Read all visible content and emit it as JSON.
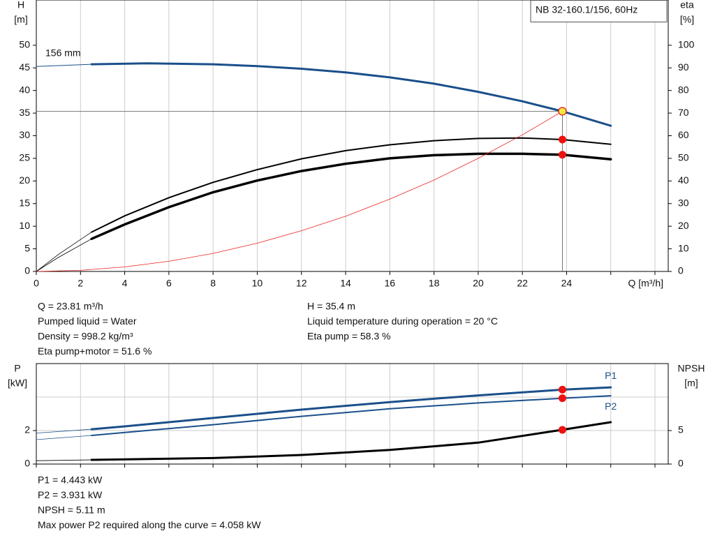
{
  "chart_data": [
    {
      "type": "line",
      "title": "NB 32-160.1/156, 60Hz",
      "ylabel": [
        "H",
        "[m]"
      ],
      "y2label": [
        "eta",
        "[%]"
      ],
      "xlabel": "Q [m³/h]",
      "curve_label": "156 mm",
      "xlim": [
        0,
        28.6
      ],
      "xticks": [
        0,
        2,
        4,
        6,
        8,
        10,
        12,
        14,
        16,
        18,
        20,
        22,
        24
      ],
      "xgrid": [
        0,
        2,
        4,
        6,
        8,
        10,
        12,
        14,
        16,
        18,
        20,
        22,
        24,
        26,
        28
      ],
      "ylim": [
        0,
        60
      ],
      "yticks": [
        0,
        5,
        10,
        15,
        20,
        25,
        30,
        35,
        40,
        45,
        50
      ],
      "y2lim": [
        0,
        120
      ],
      "y2ticks": [
        0,
        10,
        20,
        30,
        40,
        50,
        60,
        70,
        80,
        90,
        100
      ],
      "crosshair": {
        "x": 23.81,
        "y": 35.4
      },
      "series": [
        {
          "color": "#1a4f8a",
          "width": 1,
          "x": [
            0,
            1,
            2.5
          ],
          "values": [
            45.3,
            45.5,
            45.8
          ]
        },
        {
          "color": "#1a4f8a",
          "width": 3,
          "x": [
            2.5,
            5,
            8,
            10,
            12,
            14,
            16,
            18,
            20,
            22,
            23.81,
            26
          ],
          "values": [
            45.8,
            46,
            45.8,
            45.4,
            44.8,
            44,
            42.9,
            41.5,
            39.7,
            37.6,
            35.4,
            32.2
          ]
        },
        {
          "color": "#000000",
          "width": 0.8,
          "axis": "y2",
          "x": [
            0,
            1,
            2.5
          ],
          "values": [
            0,
            7.5,
            17.4
          ]
        },
        {
          "color": "#000000",
          "width": 0.8,
          "axis": "y2",
          "x": [
            0,
            1,
            2.5
          ],
          "values": [
            0,
            6.2,
            14.4
          ]
        },
        {
          "color": "#000000",
          "width": 2,
          "axis": "y2",
          "x": [
            2.5,
            4,
            6,
            8,
            10,
            12,
            14,
            16,
            18,
            20,
            22,
            23.81,
            26
          ],
          "values": [
            17.4,
            24.6,
            32.6,
            39.4,
            45,
            49.8,
            53.4,
            56,
            57.8,
            58.8,
            59,
            58.3,
            56.2
          ]
        },
        {
          "color": "#000000",
          "width": 3.5,
          "axis": "y2",
          "x": [
            2.5,
            4,
            6,
            8,
            10,
            12,
            14,
            16,
            18,
            20,
            22,
            23.81,
            26
          ],
          "values": [
            14.4,
            20.8,
            28.4,
            35,
            40.2,
            44.4,
            47.6,
            50,
            51.4,
            52,
            52,
            51.6,
            49.6
          ]
        },
        {
          "color": "#ee2222",
          "width": 0.8,
          "x": [
            0,
            2,
            4,
            6,
            8,
            10,
            12,
            14,
            16,
            18,
            20,
            22,
            23.81
          ],
          "values": [
            0,
            0.25,
            1,
            2.25,
            4,
            6.24,
            9,
            12.2,
            16,
            20.2,
            25,
            30.2,
            35.4
          ]
        }
      ],
      "points": [
        {
          "x": 23.81,
          "y": 35.4,
          "color": "#f5e642"
        },
        {
          "x": 23.81,
          "y": 58.3,
          "color": "#ee1111",
          "axis": "y2"
        },
        {
          "x": 23.81,
          "y": 51.6,
          "color": "#ee1111",
          "axis": "y2"
        }
      ],
      "notes": [
        [
          "Q = 23.81 m³/h",
          "Pumped liquid = Water",
          "Density = 998.2 kg/m³",
          "Eta pump+motor = 51.6 %"
        ],
        [
          "H = 35.4 m",
          "Liquid temperature during operation = 20 °C",
          "Eta pump = 58.3 %"
        ]
      ]
    },
    {
      "type": "line",
      "ylabel": [
        "P",
        "[kW]"
      ],
      "y2label": [
        "NPSH",
        "[m]"
      ],
      "xlim": [
        0,
        28.6
      ],
      "xgrid": [
        0,
        2,
        4,
        6,
        8,
        10,
        12,
        14,
        16,
        18,
        20,
        22,
        24,
        26,
        28
      ],
      "ylim": [
        0,
        6
      ],
      "yticks": [
        0,
        2
      ],
      "ygrid": [
        2,
        4
      ],
      "y2lim": [
        0,
        15
      ],
      "y2ticks": [
        0,
        5
      ],
      "series": [
        {
          "color": "#1a4f8a",
          "width": 0.8,
          "x": [
            0,
            2.5
          ],
          "values": [
            1.85,
            2.08
          ]
        },
        {
          "color": "#1a4f8a",
          "width": 0.8,
          "x": [
            0,
            2.5
          ],
          "values": [
            1.46,
            1.71
          ]
        },
        {
          "color": "#000000",
          "width": 0.8,
          "axis": "y2",
          "x": [
            0,
            2.5
          ],
          "values": [
            0.5,
            0.62
          ]
        },
        {
          "name": "P1",
          "color": "#1a4f8a",
          "width": 3,
          "x": [
            2.5,
            4,
            8,
            12,
            16,
            20,
            23.81,
            26
          ],
          "values": [
            2.08,
            2.25,
            2.75,
            3.25,
            3.7,
            4.1,
            4.443,
            4.58
          ]
        },
        {
          "name": "P2",
          "color": "#1a4f8a",
          "width": 2,
          "x": [
            2.5,
            8,
            12,
            16,
            20,
            23.81,
            26
          ],
          "values": [
            1.71,
            2.35,
            2.85,
            3.3,
            3.65,
            3.931,
            4.08
          ]
        },
        {
          "color": "#000000",
          "width": 3,
          "axis": "y2",
          "x": [
            2.5,
            8,
            12,
            16,
            20,
            23.81,
            26
          ],
          "values": [
            0.62,
            0.9,
            1.35,
            2.1,
            3.2,
            5.11,
            6.25
          ]
        }
      ],
      "points": [
        {
          "x": 23.81,
          "y": 4.443,
          "color": "#ee1111"
        },
        {
          "x": 23.81,
          "y": 3.931,
          "color": "#ee1111"
        },
        {
          "x": 23.81,
          "y": 5.11,
          "color": "#ee1111",
          "axis": "y2"
        }
      ],
      "notes": [
        [
          "P1 = 4.443 kW",
          "P2 = 3.931 kW",
          "NPSH = 5.11 m",
          "Max power P2 required along the curve = 4.058 kW"
        ]
      ]
    }
  ]
}
